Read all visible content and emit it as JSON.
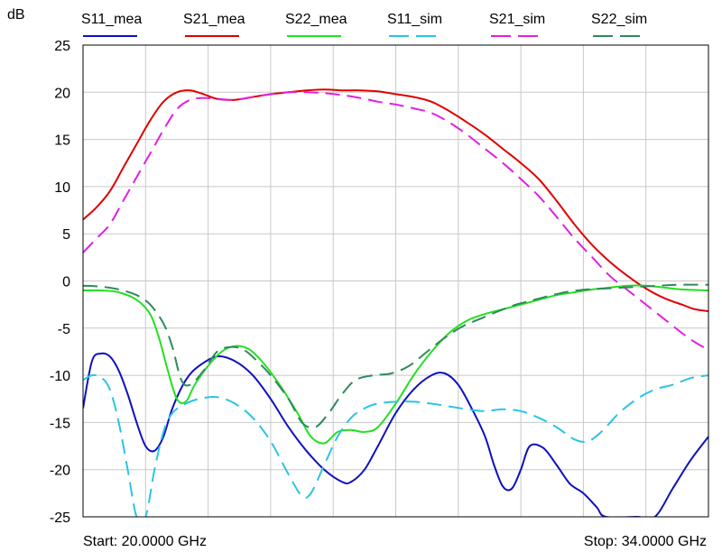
{
  "chart_data": {
    "type": "line",
    "ylabel": "dB",
    "x_unit": "GHz",
    "xlim": [
      20.0,
      34.0
    ],
    "ylim": [
      -25,
      25
    ],
    "y_ticks": [
      25,
      20,
      15,
      10,
      5,
      0,
      -5,
      -10,
      -15,
      -20,
      -25
    ],
    "grid": true,
    "legend_position": "top",
    "start_label": "Start: 20.0000 GHz",
    "stop_label": "Stop: 34.0000 GHz",
    "series": [
      {
        "name": "S11_mea",
        "color": "#1010c0",
        "dashed": false,
        "points": [
          [
            20.0,
            -13.5
          ],
          [
            20.2,
            -8.5
          ],
          [
            20.4,
            -7.7
          ],
          [
            20.6,
            -8.0
          ],
          [
            20.8,
            -9.5
          ],
          [
            21.0,
            -12.0
          ],
          [
            21.2,
            -15.0
          ],
          [
            21.4,
            -17.5
          ],
          [
            21.6,
            -18.0
          ],
          [
            21.8,
            -16.5
          ],
          [
            22.0,
            -13.5
          ],
          [
            22.3,
            -10.5
          ],
          [
            22.6,
            -9.0
          ],
          [
            23.0,
            -8.0
          ],
          [
            23.4,
            -8.5
          ],
          [
            23.8,
            -10.0
          ],
          [
            24.2,
            -12.5
          ],
          [
            24.6,
            -15.5
          ],
          [
            25.0,
            -18.0
          ],
          [
            25.4,
            -20.0
          ],
          [
            25.8,
            -21.3
          ],
          [
            26.0,
            -21.3
          ],
          [
            26.3,
            -20.0
          ],
          [
            26.6,
            -17.5
          ],
          [
            27.0,
            -14.0
          ],
          [
            27.4,
            -11.5
          ],
          [
            27.8,
            -10.0
          ],
          [
            28.1,
            -9.8
          ],
          [
            28.4,
            -11.0
          ],
          [
            28.7,
            -13.5
          ],
          [
            29.0,
            -16.5
          ],
          [
            29.2,
            -19.5
          ],
          [
            29.4,
            -21.8
          ],
          [
            29.6,
            -22.0
          ],
          [
            29.8,
            -20.0
          ],
          [
            30.0,
            -17.5
          ],
          [
            30.3,
            -17.7
          ],
          [
            30.6,
            -19.5
          ],
          [
            30.9,
            -21.5
          ],
          [
            31.2,
            -22.5
          ],
          [
            31.5,
            -24.0
          ],
          [
            31.7,
            -25.0
          ],
          [
            32.4,
            -25.0
          ],
          [
            32.8,
            -25.0
          ],
          [
            33.2,
            -22.0
          ],
          [
            33.6,
            -19.0
          ],
          [
            34.0,
            -16.5
          ]
        ]
      },
      {
        "name": "S21_mea",
        "color": "#e00000",
        "dashed": false,
        "points": [
          [
            20.0,
            6.5
          ],
          [
            20.3,
            7.8
          ],
          [
            20.6,
            9.5
          ],
          [
            20.9,
            12.0
          ],
          [
            21.2,
            14.5
          ],
          [
            21.5,
            17.0
          ],
          [
            21.8,
            19.0
          ],
          [
            22.1,
            20.0
          ],
          [
            22.4,
            20.2
          ],
          [
            22.7,
            19.8
          ],
          [
            23.0,
            19.3
          ],
          [
            23.4,
            19.2
          ],
          [
            23.8,
            19.5
          ],
          [
            24.2,
            19.8
          ],
          [
            24.6,
            20.0
          ],
          [
            25.0,
            20.2
          ],
          [
            25.4,
            20.3
          ],
          [
            25.8,
            20.2
          ],
          [
            26.2,
            20.2
          ],
          [
            26.6,
            20.1
          ],
          [
            27.0,
            19.8
          ],
          [
            27.4,
            19.5
          ],
          [
            27.8,
            19.0
          ],
          [
            28.2,
            18.0
          ],
          [
            28.6,
            16.8
          ],
          [
            29.0,
            15.5
          ],
          [
            29.4,
            14.0
          ],
          [
            29.8,
            12.5
          ],
          [
            30.2,
            10.8
          ],
          [
            30.6,
            8.5
          ],
          [
            31.0,
            6.0
          ],
          [
            31.4,
            3.8
          ],
          [
            31.8,
            2.0
          ],
          [
            32.2,
            0.5
          ],
          [
            32.6,
            -0.8
          ],
          [
            33.0,
            -1.8
          ],
          [
            33.4,
            -2.5
          ],
          [
            33.7,
            -3.0
          ],
          [
            34.0,
            -3.2
          ]
        ]
      },
      {
        "name": "S22_mea",
        "color": "#22e022",
        "dashed": false,
        "points": [
          [
            20.0,
            -1.0
          ],
          [
            20.4,
            -1.0
          ],
          [
            20.8,
            -1.2
          ],
          [
            21.2,
            -2.0
          ],
          [
            21.5,
            -3.5
          ],
          [
            21.7,
            -6.0
          ],
          [
            21.9,
            -9.5
          ],
          [
            22.1,
            -12.5
          ],
          [
            22.3,
            -12.8
          ],
          [
            22.5,
            -11.0
          ],
          [
            22.8,
            -9.0
          ],
          [
            23.1,
            -7.5
          ],
          [
            23.4,
            -6.9
          ],
          [
            23.7,
            -7.2
          ],
          [
            24.0,
            -8.5
          ],
          [
            24.4,
            -11.0
          ],
          [
            24.8,
            -14.0
          ],
          [
            25.1,
            -16.5
          ],
          [
            25.4,
            -17.2
          ],
          [
            25.7,
            -16.0
          ],
          [
            26.0,
            -15.8
          ],
          [
            26.3,
            -16.0
          ],
          [
            26.6,
            -15.5
          ],
          [
            27.0,
            -13.0
          ],
          [
            27.4,
            -10.0
          ],
          [
            27.8,
            -7.5
          ],
          [
            28.2,
            -5.5
          ],
          [
            28.6,
            -4.2
          ],
          [
            29.0,
            -3.5
          ],
          [
            29.4,
            -3.0
          ],
          [
            29.8,
            -2.5
          ],
          [
            30.2,
            -2.0
          ],
          [
            30.6,
            -1.5
          ],
          [
            31.0,
            -1.2
          ],
          [
            31.4,
            -0.9
          ],
          [
            31.8,
            -0.7
          ],
          [
            32.2,
            -0.5
          ],
          [
            32.6,
            -0.5
          ],
          [
            33.0,
            -0.7
          ],
          [
            33.4,
            -0.9
          ],
          [
            34.0,
            -1.0
          ]
        ]
      },
      {
        "name": "S11_sim",
        "color": "#29c4e6",
        "dashed": true,
        "points": [
          [
            20.0,
            -10.5
          ],
          [
            20.2,
            -10.0
          ],
          [
            20.4,
            -10.2
          ],
          [
            20.6,
            -11.5
          ],
          [
            20.8,
            -15.0
          ],
          [
            21.0,
            -20.0
          ],
          [
            21.2,
            -25.0
          ],
          [
            21.4,
            -25.0
          ],
          [
            21.6,
            -20.0
          ],
          [
            21.8,
            -16.0
          ],
          [
            22.0,
            -14.0
          ],
          [
            22.3,
            -13.0
          ],
          [
            22.6,
            -12.5
          ],
          [
            23.0,
            -12.3
          ],
          [
            23.4,
            -13.0
          ],
          [
            23.8,
            -14.5
          ],
          [
            24.2,
            -17.0
          ],
          [
            24.6,
            -20.5
          ],
          [
            24.9,
            -22.8
          ],
          [
            25.1,
            -22.5
          ],
          [
            25.4,
            -19.5
          ],
          [
            25.7,
            -16.5
          ],
          [
            26.0,
            -14.5
          ],
          [
            26.3,
            -13.5
          ],
          [
            26.6,
            -13.0
          ],
          [
            27.0,
            -12.8
          ],
          [
            27.4,
            -12.8
          ],
          [
            27.8,
            -13.0
          ],
          [
            28.2,
            -13.3
          ],
          [
            28.6,
            -13.6
          ],
          [
            29.0,
            -13.8
          ],
          [
            29.4,
            -13.6
          ],
          [
            29.8,
            -13.8
          ],
          [
            30.2,
            -14.5
          ],
          [
            30.6,
            -15.5
          ],
          [
            31.0,
            -16.8
          ],
          [
            31.3,
            -17.0
          ],
          [
            31.6,
            -16.0
          ],
          [
            32.0,
            -14.0
          ],
          [
            32.4,
            -12.5
          ],
          [
            32.8,
            -11.5
          ],
          [
            33.2,
            -11.0
          ],
          [
            33.6,
            -10.3
          ],
          [
            34.0,
            -10.0
          ]
        ]
      },
      {
        "name": "S21_sim",
        "color": "#e020e0",
        "dashed": true,
        "points": [
          [
            20.0,
            3.0
          ],
          [
            20.3,
            4.5
          ],
          [
            20.6,
            6.0
          ],
          [
            20.9,
            8.5
          ],
          [
            21.2,
            11.0
          ],
          [
            21.5,
            13.5
          ],
          [
            21.8,
            16.0
          ],
          [
            22.1,
            18.2
          ],
          [
            22.4,
            19.2
          ],
          [
            22.7,
            19.4
          ],
          [
            23.0,
            19.3
          ],
          [
            23.4,
            19.2
          ],
          [
            23.8,
            19.5
          ],
          [
            24.2,
            19.8
          ],
          [
            24.6,
            20.0
          ],
          [
            25.0,
            20.0
          ],
          [
            25.4,
            19.9
          ],
          [
            25.8,
            19.7
          ],
          [
            26.2,
            19.4
          ],
          [
            26.6,
            19.0
          ],
          [
            27.0,
            18.7
          ],
          [
            27.4,
            18.3
          ],
          [
            27.8,
            17.8
          ],
          [
            28.2,
            16.8
          ],
          [
            28.6,
            15.5
          ],
          [
            29.0,
            14.0
          ],
          [
            29.4,
            12.5
          ],
          [
            29.8,
            10.8
          ],
          [
            30.2,
            9.0
          ],
          [
            30.6,
            6.8
          ],
          [
            31.0,
            4.5
          ],
          [
            31.4,
            2.5
          ],
          [
            31.8,
            0.5
          ],
          [
            32.2,
            -1.0
          ],
          [
            32.6,
            -2.5
          ],
          [
            33.0,
            -4.0
          ],
          [
            33.4,
            -5.5
          ],
          [
            33.7,
            -6.5
          ],
          [
            34.0,
            -7.3
          ]
        ]
      },
      {
        "name": "S22_sim",
        "color": "#2e8a5c",
        "dashed": true,
        "points": [
          [
            20.0,
            -0.5
          ],
          [
            20.4,
            -0.6
          ],
          [
            20.8,
            -0.9
          ],
          [
            21.2,
            -1.5
          ],
          [
            21.5,
            -2.5
          ],
          [
            21.8,
            -4.5
          ],
          [
            22.0,
            -7.0
          ],
          [
            22.2,
            -10.5
          ],
          [
            22.4,
            -11.0
          ],
          [
            22.7,
            -9.5
          ],
          [
            23.0,
            -7.5
          ],
          [
            23.3,
            -7.0
          ],
          [
            23.6,
            -7.3
          ],
          [
            23.9,
            -8.5
          ],
          [
            24.2,
            -10.0
          ],
          [
            24.6,
            -12.5
          ],
          [
            24.9,
            -15.0
          ],
          [
            25.2,
            -15.5
          ],
          [
            25.5,
            -14.0
          ],
          [
            25.8,
            -12.0
          ],
          [
            26.1,
            -10.5
          ],
          [
            26.5,
            -10.0
          ],
          [
            26.9,
            -9.8
          ],
          [
            27.3,
            -9.0
          ],
          [
            27.7,
            -7.5
          ],
          [
            28.1,
            -6.0
          ],
          [
            28.5,
            -4.8
          ],
          [
            28.9,
            -4.0
          ],
          [
            29.3,
            -3.2
          ],
          [
            29.7,
            -2.5
          ],
          [
            30.1,
            -2.0
          ],
          [
            30.5,
            -1.5
          ],
          [
            30.9,
            -1.1
          ],
          [
            31.3,
            -0.9
          ],
          [
            31.7,
            -0.8
          ],
          [
            32.1,
            -0.7
          ],
          [
            32.5,
            -0.6
          ],
          [
            32.9,
            -0.5
          ],
          [
            33.3,
            -0.4
          ],
          [
            34.0,
            -0.4
          ]
        ]
      }
    ]
  }
}
